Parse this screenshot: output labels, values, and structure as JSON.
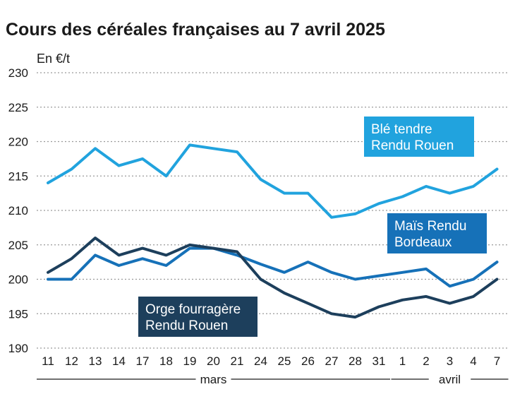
{
  "chart_data": {
    "type": "line",
    "title": "Cours des céréales françaises au 7 avril 2025",
    "ylabel": "En €/t",
    "ylim": [
      190,
      230
    ],
    "yticks": [
      190,
      195,
      200,
      205,
      210,
      215,
      220,
      225,
      230
    ],
    "categories": [
      "11",
      "12",
      "13",
      "14",
      "17",
      "18",
      "19",
      "20",
      "21",
      "24",
      "25",
      "26",
      "27",
      "28",
      "31",
      "1",
      "2",
      "3",
      "4",
      "7"
    ],
    "months": [
      {
        "label": "mars",
        "from": 0,
        "to": 14
      },
      {
        "label": "avril",
        "from": 15,
        "to": 19
      }
    ],
    "grid": true,
    "series": [
      {
        "name": "Blé tendre Rendu Rouen",
        "label_lines": [
          "Blé tendre",
          "Rendu Rouen"
        ],
        "color": "#21a3de",
        "values": [
          214,
          216,
          219,
          216.5,
          217.5,
          215,
          219.5,
          219,
          218.5,
          214.5,
          212.5,
          212.5,
          209,
          209.5,
          211,
          212,
          213.5,
          212.5,
          213.5,
          216
        ]
      },
      {
        "name": "Maïs Rendu Bordeaux",
        "label_lines": [
          "Maïs Rendu",
          "Bordeaux"
        ],
        "color": "#1671b8",
        "values": [
          200,
          200,
          203.5,
          202,
          203,
          202,
          204.5,
          204.5,
          203.5,
          202.2,
          201,
          202.5,
          201,
          200,
          200.5,
          201,
          201.5,
          199,
          200,
          202.5
        ]
      },
      {
        "name": "Orge fourragère Rendu Rouen",
        "label_lines": [
          "Orge fourragère",
          "Rendu Rouen"
        ],
        "color": "#1d3f5c",
        "values": [
          201,
          203,
          206,
          203.5,
          204.5,
          203.5,
          205,
          204.5,
          204,
          200,
          198,
          196.5,
          195,
          194.5,
          196,
          197,
          197.5,
          196.5,
          197.5,
          200
        ]
      }
    ]
  }
}
